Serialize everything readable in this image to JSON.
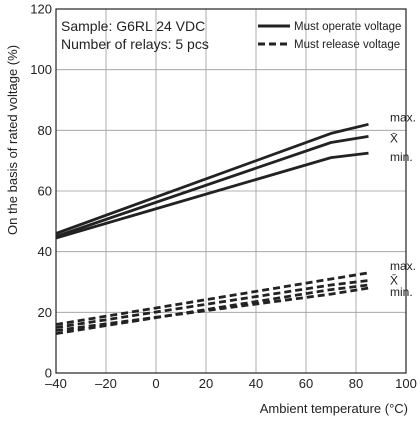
{
  "chart_data": {
    "type": "line",
    "xlabel": "Ambient temperature (°C)",
    "ylabel": "On the basis of rated voltage (%)",
    "xlim": [
      -40,
      100
    ],
    "ylim": [
      0,
      120
    ],
    "x_ticks": [
      -40,
      -20,
      0,
      20,
      40,
      60,
      80,
      100
    ],
    "x_tick_labels": [
      "–40",
      "–20",
      "0",
      "20",
      "40",
      "60",
      "80",
      "100"
    ],
    "y_ticks": [
      0,
      20,
      40,
      60,
      80,
      100,
      120
    ],
    "y_tick_labels": [
      "0",
      "20",
      "40",
      "60",
      "80",
      "100",
      "120"
    ],
    "grid": true,
    "legend_position": "top-right",
    "annotations": [
      "Sample: G6RL 24 VDC",
      "Number of relays: 5 pcs"
    ],
    "legend": [
      {
        "label": "Must operate voltage",
        "style": "solid"
      },
      {
        "label": "Must release voltage",
        "style": "dashed"
      }
    ],
    "series": [
      {
        "group": "Must operate voltage",
        "end_label": "max.",
        "style": "solid",
        "x": [
          -40,
          70,
          85
        ],
        "y": [
          46,
          79,
          82
        ]
      },
      {
        "group": "Must operate voltage",
        "end_label": "X̄",
        "style": "solid",
        "x": [
          -40,
          70,
          85
        ],
        "y": [
          45,
          76,
          78
        ]
      },
      {
        "group": "Must operate voltage",
        "end_label": "min.",
        "style": "solid",
        "x": [
          -40,
          70,
          85
        ],
        "y": [
          44.5,
          71,
          72.5
        ]
      },
      {
        "group": "Must release voltage",
        "end_label": "max.",
        "style": "dashed",
        "x": [
          -40,
          70,
          85
        ],
        "y": [
          16,
          31,
          33
        ]
      },
      {
        "group": "Must release voltage",
        "end_label": "X̄",
        "style": "dashed",
        "x": [
          -40,
          70,
          85
        ],
        "y": [
          15,
          29,
          30.5
        ]
      },
      {
        "group": "Must release voltage",
        "end_label": "min.",
        "style": "dashed",
        "x": [
          -40,
          70,
          85
        ],
        "y": [
          14,
          26,
          28
        ]
      },
      {
        "group": "Must release voltage",
        "end_label": "",
        "style": "dashed",
        "x": [
          -40,
          70,
          85
        ],
        "y": [
          13,
          27.5,
          29
        ]
      }
    ]
  }
}
